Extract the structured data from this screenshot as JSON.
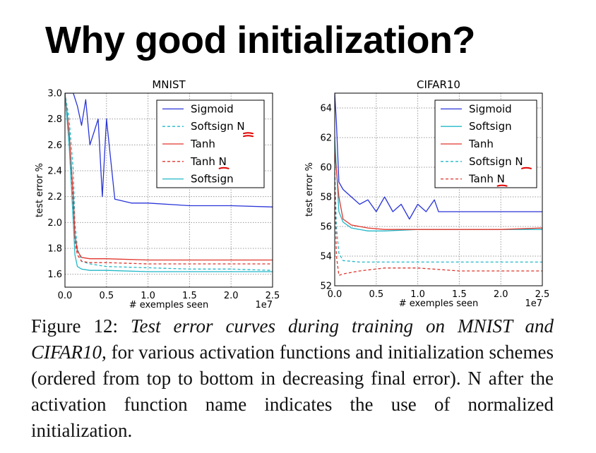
{
  "slide": {
    "title": "Why good initialization?"
  },
  "caption": {
    "label": "Figure 12:",
    "italic": "Test error curves during training on MNIST and CIFAR10,",
    "rest": "for various activation functions and initialization schemes (ordered from top to bottom in decreasing final error). N after the activation function name indicates the use of normalized initialization."
  },
  "colors": {
    "sigmoid": "#2a35d8",
    "softsign": "#22b8c8",
    "tanh": "#e0352b",
    "annotation": "#e00000"
  },
  "chart_data": [
    {
      "type": "line",
      "title": "MNIST",
      "xlabel": "# exemples seen",
      "ylabel": "test error %",
      "x_multiplier": "1e7",
      "xlim": [
        0,
        2.5
      ],
      "ylim": [
        1.5,
        3.0
      ],
      "xticks": [
        "0.0",
        "0.5",
        "1.0",
        "1.5",
        "2.0",
        "2.5"
      ],
      "yticks": [
        "1.6",
        "1.8",
        "2.0",
        "2.2",
        "2.4",
        "2.6",
        "2.8",
        "3.0"
      ],
      "grid": true,
      "legend_position": "top-right",
      "series": [
        {
          "name": "Sigmoid",
          "color": "#2a35d8",
          "dash": "solid",
          "x": [
            0.0,
            0.1,
            0.15,
            0.2,
            0.25,
            0.3,
            0.35,
            0.4,
            0.45,
            0.5,
            0.6,
            0.8,
            1.0,
            1.5,
            2.0,
            2.5
          ],
          "y": [
            3.0,
            3.0,
            2.9,
            2.75,
            2.95,
            2.6,
            2.7,
            2.8,
            2.2,
            2.8,
            2.18,
            2.15,
            2.15,
            2.13,
            2.13,
            2.12
          ]
        },
        {
          "name": "Softsign N",
          "color": "#22b8c8",
          "dash": "dashed",
          "x": [
            0.0,
            0.05,
            0.1,
            0.12,
            0.15,
            0.2,
            0.3,
            0.5,
            1.0,
            1.5,
            2.0,
            2.5
          ],
          "y": [
            3.0,
            2.8,
            2.4,
            2.0,
            1.8,
            1.7,
            1.68,
            1.66,
            1.65,
            1.64,
            1.64,
            1.63
          ]
        },
        {
          "name": "Tanh",
          "color": "#e0352b",
          "dash": "solid",
          "x": [
            0.0,
            0.05,
            0.1,
            0.12,
            0.15,
            0.2,
            0.3,
            0.5,
            1.0,
            1.5,
            2.0,
            2.5
          ],
          "y": [
            3.0,
            2.7,
            2.2,
            1.9,
            1.78,
            1.73,
            1.72,
            1.72,
            1.71,
            1.71,
            1.71,
            1.71
          ]
        },
        {
          "name": "Tanh N",
          "color": "#e0352b",
          "dash": "dashed",
          "x": [
            0.0,
            0.05,
            0.1,
            0.12,
            0.15,
            0.2,
            0.3,
            0.5,
            1.0,
            1.5,
            2.0,
            2.5
          ],
          "y": [
            3.0,
            2.6,
            2.1,
            1.85,
            1.75,
            1.7,
            1.69,
            1.69,
            1.68,
            1.68,
            1.68,
            1.68
          ]
        },
        {
          "name": "Softsign",
          "color": "#22b8c8",
          "dash": "solid",
          "x": [
            0.0,
            0.05,
            0.1,
            0.12,
            0.15,
            0.2,
            0.3,
            0.5,
            1.0,
            1.5,
            2.0,
            2.5
          ],
          "y": [
            3.0,
            2.6,
            2.0,
            1.75,
            1.66,
            1.64,
            1.63,
            1.63,
            1.62,
            1.62,
            1.62,
            1.62
          ]
        }
      ]
    },
    {
      "type": "line",
      "title": "CIFAR10",
      "xlabel": "# exemples seen",
      "ylabel": "test error %",
      "x_multiplier": "1e7",
      "xlim": [
        0,
        2.5
      ],
      "ylim": [
        52,
        65
      ],
      "xticks": [
        "0.0",
        "0.5",
        "1.0",
        "1.5",
        "2.0",
        "2.5"
      ],
      "yticks": [
        "52",
        "54",
        "56",
        "58",
        "60",
        "62",
        "64"
      ],
      "grid": true,
      "legend_position": "top-right",
      "series": [
        {
          "name": "Sigmoid",
          "color": "#2a35d8",
          "dash": "solid",
          "x": [
            0.0,
            0.02,
            0.05,
            0.1,
            0.2,
            0.3,
            0.4,
            0.5,
            0.6,
            0.7,
            0.8,
            0.9,
            1.0,
            1.1,
            1.2,
            1.25,
            1.5,
            2.0,
            2.5
          ],
          "y": [
            65,
            63,
            59,
            58.5,
            58,
            57.5,
            57.8,
            57,
            58,
            57,
            57.5,
            56.5,
            57.5,
            57,
            57.8,
            57,
            57,
            57,
            57
          ]
        },
        {
          "name": "Softsign",
          "color": "#22b8c8",
          "dash": "solid",
          "x": [
            0.0,
            0.05,
            0.1,
            0.2,
            0.4,
            0.6,
            1.0,
            1.5,
            2.0,
            2.5
          ],
          "y": [
            62,
            57,
            56.3,
            55.9,
            55.7,
            55.7,
            55.8,
            55.8,
            55.8,
            55.8
          ]
        },
        {
          "name": "Tanh",
          "color": "#e0352b",
          "dash": "solid",
          "x": [
            0.0,
            0.05,
            0.1,
            0.2,
            0.4,
            0.6,
            1.0,
            1.5,
            2.0,
            2.5
          ],
          "y": [
            61,
            58,
            56.5,
            56.1,
            55.9,
            55.8,
            55.8,
            55.8,
            55.8,
            55.9
          ]
        },
        {
          "name": "Softsign N",
          "color": "#22b8c8",
          "dash": "dashed",
          "x": [
            0.0,
            0.02,
            0.05,
            0.1,
            0.3,
            0.6,
            1.0,
            1.5,
            2.0,
            2.5
          ],
          "y": [
            60,
            56,
            54.2,
            53.7,
            53.6,
            53.6,
            53.6,
            53.6,
            53.6,
            53.6
          ]
        },
        {
          "name": "Tanh N",
          "color": "#e0352b",
          "dash": "dashed",
          "x": [
            0.0,
            0.02,
            0.05,
            0.1,
            0.3,
            0.6,
            1.0,
            1.5,
            2.0,
            2.5
          ],
          "y": [
            59,
            54,
            52.7,
            52.8,
            53.0,
            53.2,
            53.2,
            53.0,
            53.0,
            53.0
          ]
        }
      ]
    }
  ]
}
